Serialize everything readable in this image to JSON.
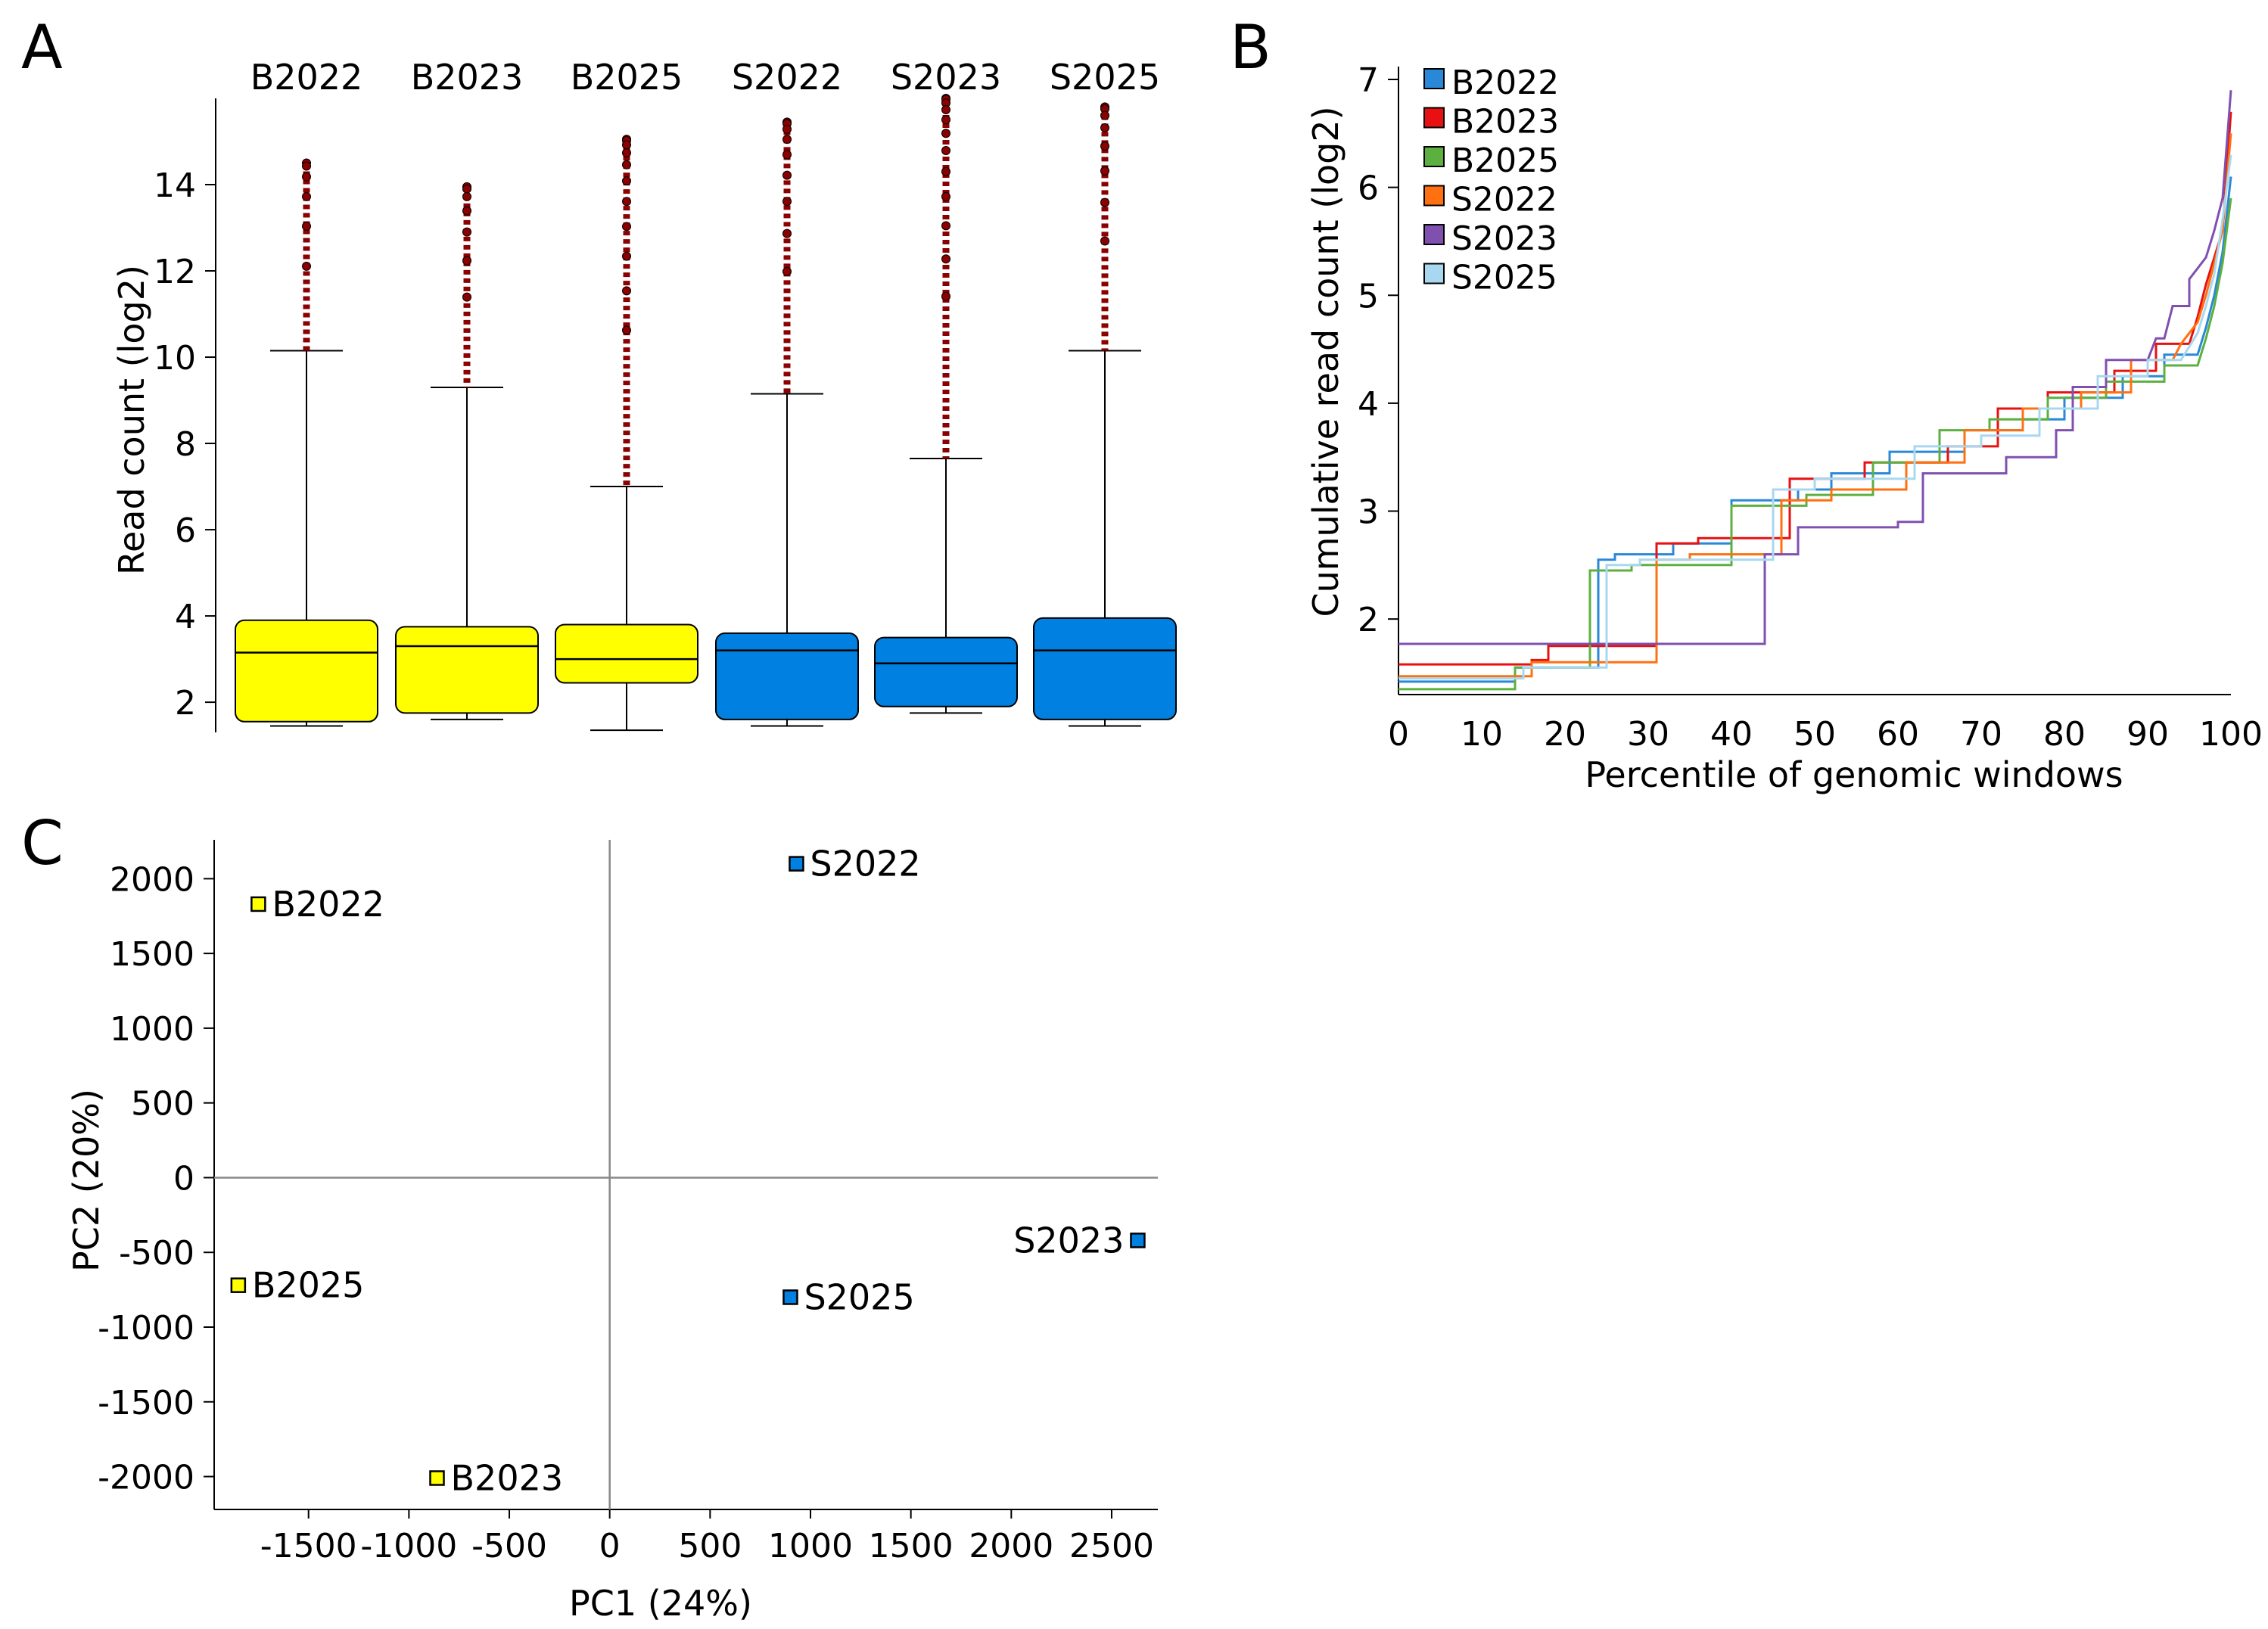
{
  "panels": {
    "a": "A",
    "b": "B",
    "c": "C"
  },
  "colors": {
    "B": "#ffff00",
    "S": "#0080e0",
    "outlier": "#8b0000",
    "lines": {
      "B2022": "#2a88d8",
      "B2023": "#e81010",
      "B2025": "#5cb040",
      "S2022": "#ff7010",
      "S2023": "#8050b0",
      "S2025": "#a8d8ef"
    }
  },
  "chart_data": [
    {
      "id": "A",
      "type": "box",
      "ylabel": "Read count (log2)",
      "ylim": [
        1.3,
        16.0
      ],
      "yticks": [
        2,
        4,
        6,
        8,
        10,
        12,
        14
      ],
      "groups": [
        {
          "name": "B2022",
          "color": "B",
          "min": 1.45,
          "q1": 1.55,
          "median": 3.15,
          "q3": 3.9,
          "max": 10.15,
          "outliers_min": 10.15,
          "outliers_max": 14.5
        },
        {
          "name": "B2023",
          "color": "B",
          "min": 1.6,
          "q1": 1.75,
          "median": 3.3,
          "q3": 3.75,
          "max": 9.3,
          "outliers_min": 9.3,
          "outliers_max": 13.95
        },
        {
          "name": "B2025",
          "color": "B",
          "min": 1.35,
          "q1": 2.45,
          "median": 3.0,
          "q3": 3.8,
          "max": 7.0,
          "outliers_min": 7.0,
          "outliers_max": 15.05
        },
        {
          "name": "S2022",
          "color": "S",
          "min": 1.45,
          "q1": 1.6,
          "median": 3.2,
          "q3": 3.6,
          "max": 9.15,
          "outliers_min": 9.15,
          "outliers_max": 15.45
        },
        {
          "name": "S2023",
          "color": "S",
          "min": 1.75,
          "q1": 1.9,
          "median": 2.9,
          "q3": 3.5,
          "max": 7.65,
          "outliers_min": 7.65,
          "outliers_max": 16.0
        },
        {
          "name": "S2025",
          "color": "S",
          "min": 1.45,
          "q1": 1.6,
          "median": 3.2,
          "q3": 3.95,
          "max": 10.15,
          "outliers_min": 10.15,
          "outliers_max": 15.8
        }
      ]
    },
    {
      "id": "B",
      "type": "line",
      "xlabel": "Percentile of genomic windows",
      "ylabel": "Cumulative read count (log2)",
      "xlim": [
        0,
        100
      ],
      "ylim": [
        1.3,
        7.0
      ],
      "xticks": [
        0,
        10,
        20,
        30,
        40,
        50,
        60,
        70,
        80,
        90,
        100
      ],
      "yticks": [
        2,
        3,
        4,
        5,
        6,
        7
      ],
      "legend": "top-left",
      "series": [
        {
          "name": "B2022",
          "points": [
            [
              0,
              1.42
            ],
            [
              14,
              1.42
            ],
            [
              14,
              1.55
            ],
            [
              24,
              1.55
            ],
            [
              24,
              2.55
            ],
            [
              26,
              2.55
            ],
            [
              26,
              2.6
            ],
            [
              33,
              2.6
            ],
            [
              33,
              2.7
            ],
            [
              40,
              2.7
            ],
            [
              40,
              3.1
            ],
            [
              48,
              3.1
            ],
            [
              48,
              3.2
            ],
            [
              52,
              3.2
            ],
            [
              52,
              3.35
            ],
            [
              59,
              3.35
            ],
            [
              59,
              3.55
            ],
            [
              68,
              3.55
            ],
            [
              68,
              3.75
            ],
            [
              75,
              3.75
            ],
            [
              75,
              3.85
            ],
            [
              80,
              3.85
            ],
            [
              80,
              4.05
            ],
            [
              87,
              4.05
            ],
            [
              87,
              4.25
            ],
            [
              92,
              4.25
            ],
            [
              92,
              4.45
            ],
            [
              96,
              4.45
            ],
            [
              97,
              4.7
            ],
            [
              98,
              5.0
            ],
            [
              99,
              5.4
            ],
            [
              100,
              6.1
            ]
          ]
        },
        {
          "name": "B2023",
          "points": [
            [
              0,
              1.58
            ],
            [
              16,
              1.58
            ],
            [
              16,
              1.62
            ],
            [
              18,
              1.62
            ],
            [
              18,
              1.75
            ],
            [
              31,
              1.75
            ],
            [
              31,
              2.7
            ],
            [
              36,
              2.7
            ],
            [
              36,
              2.75
            ],
            [
              47,
              2.75
            ],
            [
              47,
              3.3
            ],
            [
              56,
              3.3
            ],
            [
              56,
              3.45
            ],
            [
              66,
              3.45
            ],
            [
              66,
              3.6
            ],
            [
              72,
              3.6
            ],
            [
              72,
              3.95
            ],
            [
              78,
              3.95
            ],
            [
              78,
              4.1
            ],
            [
              86,
              4.1
            ],
            [
              86,
              4.3
            ],
            [
              91,
              4.3
            ],
            [
              91,
              4.55
            ],
            [
              95,
              4.55
            ],
            [
              96,
              4.8
            ],
            [
              97,
              5.1
            ],
            [
              98,
              5.35
            ],
            [
              99,
              5.6
            ],
            [
              100,
              6.7
            ]
          ]
        },
        {
          "name": "B2025",
          "points": [
            [
              0,
              1.35
            ],
            [
              14,
              1.35
            ],
            [
              14,
              1.55
            ],
            [
              23,
              1.55
            ],
            [
              23,
              2.45
            ],
            [
              28,
              2.45
            ],
            [
              28,
              2.5
            ],
            [
              40,
              2.5
            ],
            [
              40,
              3.05
            ],
            [
              49,
              3.05
            ],
            [
              49,
              3.15
            ],
            [
              57,
              3.15
            ],
            [
              57,
              3.45
            ],
            [
              65,
              3.45
            ],
            [
              65,
              3.75
            ],
            [
              71,
              3.75
            ],
            [
              71,
              3.85
            ],
            [
              78,
              3.85
            ],
            [
              78,
              4.05
            ],
            [
              85,
              4.05
            ],
            [
              85,
              4.2
            ],
            [
              92,
              4.2
            ],
            [
              92,
              4.35
            ],
            [
              96,
              4.35
            ],
            [
              97,
              4.6
            ],
            [
              98,
              4.9
            ],
            [
              99,
              5.3
            ],
            [
              100,
              5.9
            ]
          ]
        },
        {
          "name": "S2022",
          "points": [
            [
              0,
              1.47
            ],
            [
              16,
              1.47
            ],
            [
              16,
              1.6
            ],
            [
              31,
              1.6
            ],
            [
              31,
              2.55
            ],
            [
              35,
              2.55
            ],
            [
              35,
              2.6
            ],
            [
              46,
              2.6
            ],
            [
              46,
              3.1
            ],
            [
              52,
              3.1
            ],
            [
              52,
              3.2
            ],
            [
              61,
              3.2
            ],
            [
              61,
              3.45
            ],
            [
              68,
              3.45
            ],
            [
              68,
              3.75
            ],
            [
              75,
              3.75
            ],
            [
              75,
              3.95
            ],
            [
              82,
              3.95
            ],
            [
              82,
              4.1
            ],
            [
              88,
              4.1
            ],
            [
              88,
              4.4
            ],
            [
              93,
              4.4
            ],
            [
              94,
              4.55
            ],
            [
              96,
              4.75
            ],
            [
              97,
              5.0
            ],
            [
              98,
              5.3
            ],
            [
              99,
              5.6
            ],
            [
              100,
              6.5
            ]
          ]
        },
        {
          "name": "S2023",
          "points": [
            [
              0,
              1.77
            ],
            [
              44,
              1.77
            ],
            [
              44,
              1.9
            ],
            [
              44,
              2.6
            ],
            [
              48,
              2.6
            ],
            [
              48,
              2.85
            ],
            [
              60,
              2.85
            ],
            [
              60,
              2.9
            ],
            [
              63,
              2.9
            ],
            [
              63,
              3.35
            ],
            [
              73,
              3.35
            ],
            [
              73,
              3.5
            ],
            [
              79,
              3.5
            ],
            [
              79,
              3.75
            ],
            [
              81,
              3.75
            ],
            [
              81,
              4.15
            ],
            [
              85,
              4.15
            ],
            [
              85,
              4.4
            ],
            [
              90,
              4.4
            ],
            [
              91,
              4.6
            ],
            [
              92,
              4.6
            ],
            [
              93,
              4.9
            ],
            [
              95,
              4.9
            ],
            [
              95,
              5.15
            ],
            [
              97,
              5.35
            ],
            [
              98,
              5.6
            ],
            [
              99,
              5.9
            ],
            [
              100,
              6.9
            ]
          ]
        },
        {
          "name": "S2025",
          "points": [
            [
              0,
              1.45
            ],
            [
              15,
              1.45
            ],
            [
              15,
              1.55
            ],
            [
              25,
              1.55
            ],
            [
              25,
              2.5
            ],
            [
              29,
              2.5
            ],
            [
              29,
              2.55
            ],
            [
              45,
              2.55
            ],
            [
              45,
              3.2
            ],
            [
              50,
              3.2
            ],
            [
              50,
              3.3
            ],
            [
              62,
              3.3
            ],
            [
              62,
              3.6
            ],
            [
              70,
              3.6
            ],
            [
              70,
              3.7
            ],
            [
              77,
              3.7
            ],
            [
              77,
              3.95
            ],
            [
              84,
              3.95
            ],
            [
              84,
              4.25
            ],
            [
              90,
              4.25
            ],
            [
              90,
              4.4
            ],
            [
              94,
              4.4
            ],
            [
              96,
              4.65
            ],
            [
              97,
              4.9
            ],
            [
              98,
              5.2
            ],
            [
              99,
              5.7
            ],
            [
              100,
              6.3
            ]
          ]
        }
      ]
    },
    {
      "id": "C",
      "type": "scatter",
      "xlabel": "PC1 (24%)",
      "ylabel": "PC2 (20%)",
      "xlim": [
        -1970,
        2730
      ],
      "ylim": [
        -2220,
        2260
      ],
      "xticks": [
        -1500,
        -1000,
        -500,
        0,
        500,
        1000,
        1500,
        2000,
        2500
      ],
      "yticks": [
        2000,
        1500,
        1000,
        500,
        0,
        -500,
        -1000,
        -1500,
        -2000
      ],
      "points": [
        {
          "label": "B2022",
          "x": -1750,
          "y": 1830,
          "color": "B",
          "label_side": "right"
        },
        {
          "label": "B2023",
          "x": -860,
          "y": -2010,
          "color": "B",
          "label_side": "right"
        },
        {
          "label": "B2025",
          "x": -1850,
          "y": -720,
          "color": "B",
          "label_side": "right"
        },
        {
          "label": "S2022",
          "x": 930,
          "y": 2100,
          "color": "S",
          "label_side": "right"
        },
        {
          "label": "S2023",
          "x": 2630,
          "y": -420,
          "color": "S",
          "label_side": "left"
        },
        {
          "label": "S2025",
          "x": 900,
          "y": -800,
          "color": "S",
          "label_side": "right"
        }
      ]
    }
  ]
}
